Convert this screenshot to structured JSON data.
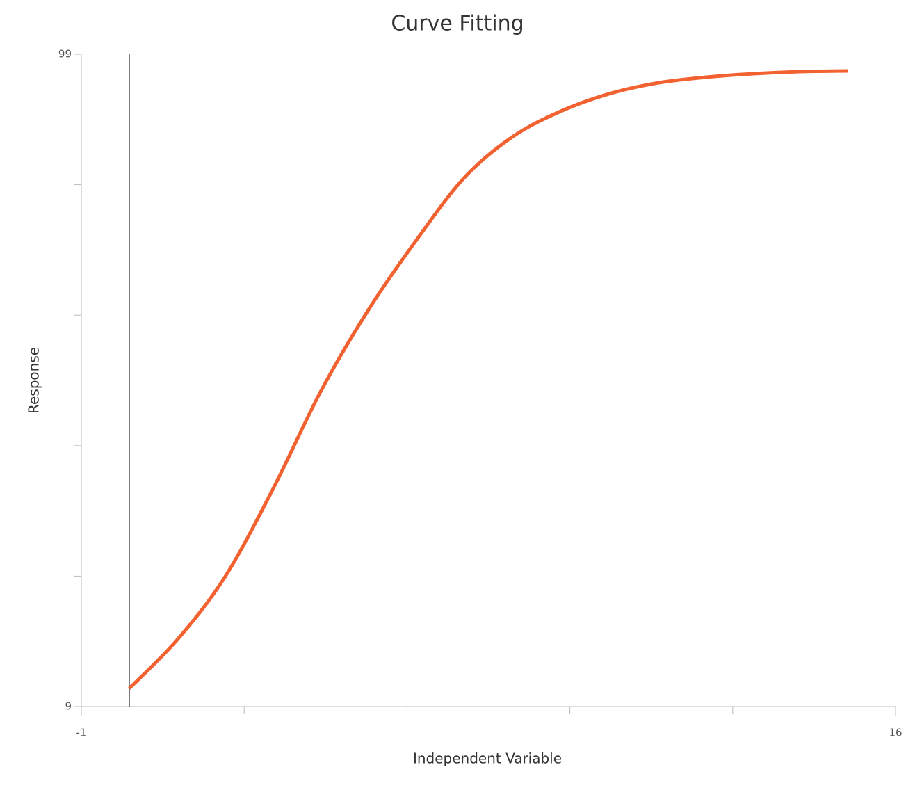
{
  "chart_data": {
    "type": "line",
    "title": "Curve Fitting",
    "x_label": "Independent Variable",
    "y_label": "Response",
    "x": [
      0,
      1,
      2,
      3,
      4,
      5,
      6,
      7,
      8,
      9,
      10,
      11,
      12,
      13,
      14,
      15
    ],
    "series": [
      {
        "color": "#f26130",
        "values": [
          11.5,
          18.2,
          26.9,
          39.0,
          52.5,
          63.8,
          73.4,
          82.0,
          87.6,
          91.1,
          93.5,
          95.0,
          95.8,
          96.3,
          96.6,
          96.7
        ]
      }
    ],
    "xlim": [
      -1,
      16
    ],
    "xticks": [
      -1,
      16
    ],
    "xminorticks": [
      2.4,
      5.8,
      9.2,
      12.6
    ],
    "ylim": [
      9,
      99
    ],
    "yticks": [
      9,
      99
    ],
    "yminorticks": [
      27,
      45,
      63,
      81
    ],
    "vline": 0
  }
}
